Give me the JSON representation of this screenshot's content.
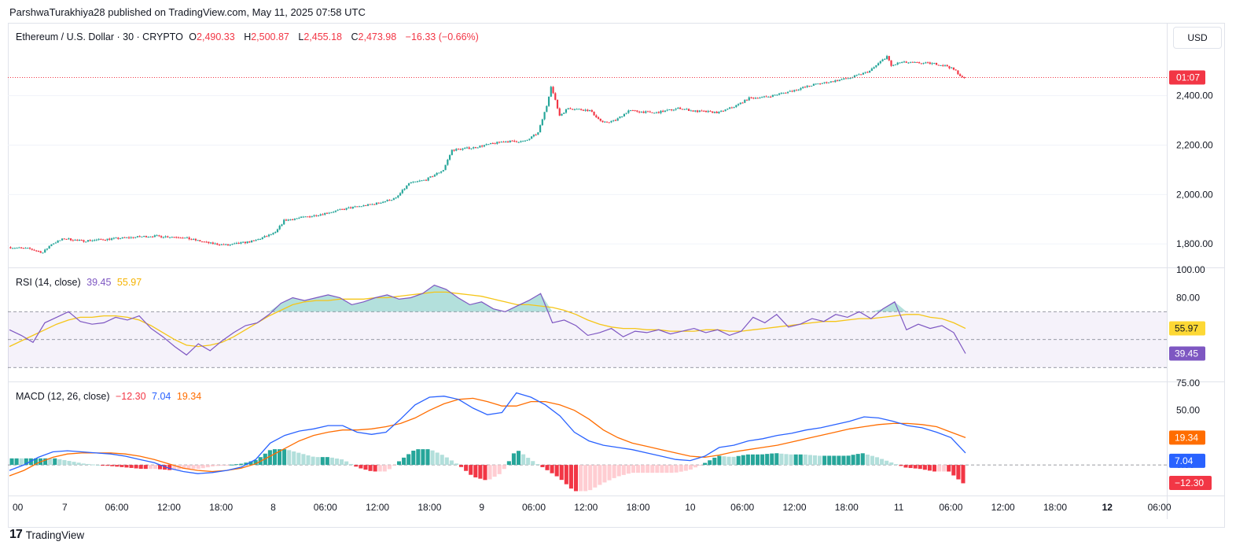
{
  "publisher_line": "ParshwaTurakhiya28 published on TradingView.com, May 11, 2025 07:58 UTC",
  "legend": {
    "symbol": "Ethereum / U.S. Dollar · 30 · CRYPTO",
    "o_label": "O",
    "o_val": "2,490.33",
    "h_label": "H",
    "h_val": "2,500.87",
    "l_label": "L",
    "l_val": "2,455.18",
    "c_label": "C",
    "c_val": "2,473.98",
    "change": "−16.33 (−0.66%)"
  },
  "currency_button": "USD",
  "footer": {
    "logo_icon": "tradingview-logo-icon",
    "brand": "TradingView"
  },
  "colors": {
    "up": "#26a69a",
    "down": "#f23645",
    "rsi": "#7e57c2",
    "rsi_ma": "#f5c518",
    "macd": "#2962ff",
    "signal": "#ff6d00",
    "grid": "#f0f3fa"
  },
  "chart_data": [
    {
      "type": "candlestick",
      "title": "Ethereum / U.S. Dollar · 30 · CRYPTO",
      "ylabel_ticks": [
        "1,800.00",
        "2,000.00",
        "2,200.00",
        "2,400.00"
      ],
      "ylim": [
        1705,
        2590
      ],
      "current_price_label": "01:07",
      "current_price": 2474,
      "x_ticks": [
        "00",
        "7",
        "06:00",
        "12:00",
        "18:00",
        "8",
        "06:00",
        "12:00",
        "18:00",
        "9",
        "06:00",
        "12:00",
        "18:00",
        "10",
        "06:00",
        "12:00",
        "18:00",
        "11",
        "06:00",
        "12:00",
        "18:00",
        "12",
        "06:00"
      ],
      "price_path": [
        [
          0,
          1787
        ],
        [
          10,
          1780
        ],
        [
          16,
          1765
        ],
        [
          20,
          1800
        ],
        [
          26,
          1822
        ],
        [
          34,
          1812
        ],
        [
          50,
          1822
        ],
        [
          66,
          1832
        ],
        [
          80,
          1828
        ],
        [
          94,
          1802
        ],
        [
          102,
          1795
        ],
        [
          114,
          1812
        ],
        [
          124,
          1845
        ],
        [
          128,
          1895
        ],
        [
          142,
          1915
        ],
        [
          158,
          1945
        ],
        [
          170,
          1962
        ],
        [
          180,
          1985
        ],
        [
          186,
          2045
        ],
        [
          194,
          2060
        ],
        [
          202,
          2100
        ],
        [
          206,
          2180
        ],
        [
          216,
          2190
        ],
        [
          230,
          2215
        ],
        [
          240,
          2215
        ],
        [
          246,
          2250
        ],
        [
          250,
          2360
        ],
        [
          252,
          2440
        ],
        [
          256,
          2320
        ],
        [
          260,
          2350
        ],
        [
          270,
          2340
        ],
        [
          276,
          2290
        ],
        [
          282,
          2300
        ],
        [
          288,
          2340
        ],
        [
          300,
          2330
        ],
        [
          312,
          2350
        ],
        [
          318,
          2338
        ],
        [
          330,
          2332
        ],
        [
          338,
          2360
        ],
        [
          344,
          2390
        ],
        [
          352,
          2395
        ],
        [
          364,
          2420
        ],
        [
          374,
          2445
        ],
        [
          384,
          2460
        ],
        [
          392,
          2475
        ],
        [
          400,
          2500
        ],
        [
          406,
          2545
        ],
        [
          408,
          2560
        ],
        [
          410,
          2520
        ],
        [
          414,
          2535
        ],
        [
          430,
          2530
        ],
        [
          436,
          2520
        ],
        [
          440,
          2500
        ],
        [
          443,
          2472
        ]
      ],
      "n_candles": 444
    },
    {
      "type": "line",
      "title": "RSI (14, close)",
      "series": [
        {
          "name": "RSI",
          "current": "39.45",
          "values": [
            57,
            53,
            48,
            62,
            66,
            70,
            63,
            61,
            62,
            66,
            64,
            67,
            58,
            52,
            45,
            39,
            47,
            42,
            49,
            55,
            60,
            62,
            68,
            76,
            80,
            78,
            80,
            82,
            80,
            75,
            77,
            80,
            82,
            79,
            80,
            83,
            89,
            86,
            80,
            75,
            77,
            72,
            70,
            74,
            78,
            83,
            62,
            64,
            60,
            53,
            55,
            58,
            52,
            56,
            55,
            57,
            54,
            56,
            58,
            55,
            57,
            53,
            56,
            66,
            62,
            68,
            59,
            61,
            65,
            63,
            68,
            66,
            70,
            65,
            72,
            77,
            57,
            61,
            58,
            60,
            55,
            40
          ]
        },
        {
          "name": "MA",
          "current": "55.97",
          "values": [
            45,
            49,
            53,
            57,
            61,
            64,
            66,
            66,
            67,
            67,
            66,
            64,
            60,
            55,
            50,
            46,
            45,
            46,
            48,
            52,
            57,
            62,
            67,
            71,
            75,
            77,
            78,
            78,
            79,
            79,
            79,
            80,
            80,
            81,
            82,
            83,
            84,
            84,
            83,
            82,
            81,
            79,
            77,
            75,
            75,
            74,
            73,
            71,
            68,
            64,
            61,
            59,
            58,
            58,
            57,
            57,
            56,
            56,
            56,
            57,
            57,
            56,
            56,
            57,
            58,
            59,
            60,
            61,
            62,
            63,
            63,
            64,
            65,
            65,
            66,
            67,
            68,
            68,
            66,
            65,
            62,
            58
          ]
        }
      ],
      "ylabel_ticks": [
        "80.00",
        "100.00"
      ],
      "ylim": [
        20,
        100
      ],
      "bands": [
        30,
        50,
        70
      ]
    },
    {
      "type": "line",
      "title": "MACD (12, 26, close)",
      "series": [
        {
          "name": "Histogram",
          "current": "−12.30"
        },
        {
          "name": "MACD",
          "current": "7.04",
          "values": [
            -5,
            0,
            7,
            12,
            13,
            12,
            11,
            10,
            8,
            5,
            2,
            -3,
            -6,
            -8,
            -7,
            -5,
            -2,
            5,
            20,
            27,
            31,
            33,
            36,
            36,
            30,
            28,
            30,
            42,
            55,
            62,
            63,
            60,
            52,
            46,
            48,
            66,
            62,
            55,
            45,
            30,
            22,
            18,
            16,
            14,
            11,
            8,
            5,
            4,
            8,
            16,
            18,
            22,
            24,
            27,
            29,
            32,
            34,
            37,
            40,
            44,
            43,
            40,
            36,
            34,
            30,
            25,
            11
          ]
        },
        {
          "name": "Signal",
          "current": "19.34",
          "values": [
            -10,
            -5,
            2,
            7,
            10,
            11,
            11,
            11,
            10,
            8,
            5,
            1,
            -3,
            -5,
            -6,
            -5,
            -3,
            1,
            8,
            15,
            22,
            27,
            30,
            32,
            32,
            33,
            35,
            38,
            43,
            50,
            56,
            60,
            61,
            58,
            54,
            54,
            58,
            58,
            55,
            50,
            42,
            32,
            25,
            20,
            17,
            14,
            11,
            8,
            7,
            9,
            12,
            14,
            16,
            18,
            21,
            24,
            27,
            30,
            33,
            35,
            37,
            38,
            38,
            37,
            35,
            30,
            25
          ]
        }
      ],
      "ylabel_ticks": [
        "0.00",
        "25.00",
        "50.00",
        "75.00"
      ],
      "ylim": [
        -28,
        75
      ]
    }
  ]
}
